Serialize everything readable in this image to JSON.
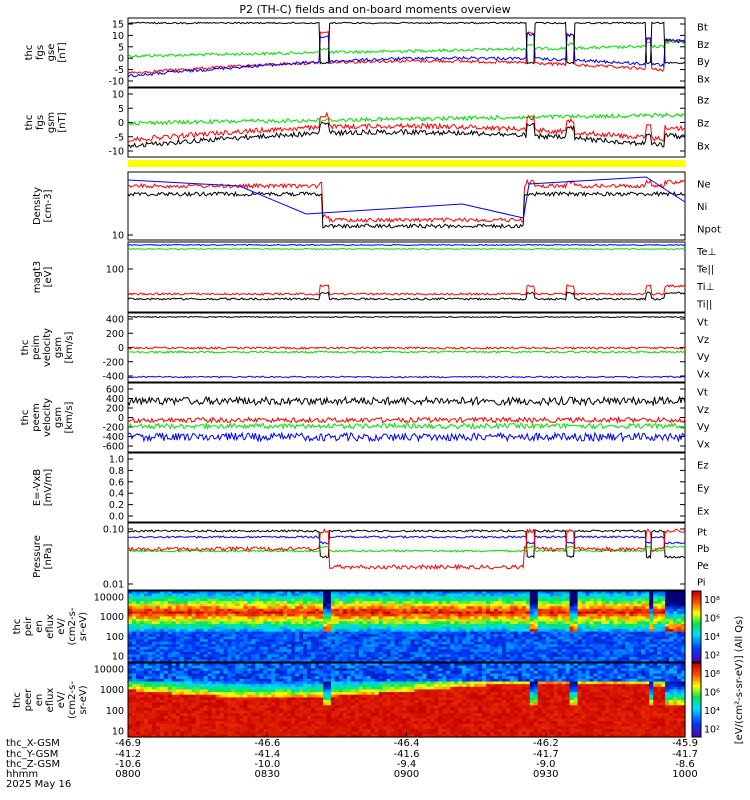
{
  "title": "P2 (TH-C) fields and on-board moments overview",
  "colors": {
    "black": "#000000",
    "red": "#ff0000",
    "green": "#00e000",
    "blue": "#0000ff",
    "yellow": "#ffff00"
  },
  "chart_data": [
    {
      "type": "line",
      "ylabel": [
        "thc",
        "fgs",
        "gse",
        "[nT]"
      ],
      "yticks": [
        "15",
        "10",
        "5",
        "0",
        "-5",
        "-10"
      ],
      "legend": [
        {
          "label": "Bt",
          "color": "black"
        },
        {
          "label": "Bz",
          "color": "red"
        },
        {
          "label": "By",
          "color": "green"
        },
        {
          "label": "Bx",
          "color": "blue"
        }
      ]
    },
    {
      "type": "line",
      "ylabel": [
        "thc",
        "fgs",
        "gsm",
        "[nT]"
      ],
      "yticks": [
        "10",
        "5",
        "0",
        "-5",
        "-10"
      ],
      "legend": [
        {
          "label": "Bz",
          "color": "green"
        },
        {
          "label": "Bz",
          "color": "red"
        },
        {
          "label": "Bx",
          "color": "black"
        }
      ]
    },
    {
      "type": "line",
      "ylabel": [
        "Density",
        "[cm-3]"
      ],
      "yticks": [
        "10"
      ],
      "legend": [
        {
          "label": "Ne",
          "color": "red"
        },
        {
          "label": "Ni",
          "color": "black"
        },
        {
          "label": "Npot",
          "color": "blue"
        }
      ]
    },
    {
      "type": "line",
      "ylabel": [
        "magt3",
        "[eV]"
      ],
      "yticks": [
        "100"
      ],
      "legend": [
        {
          "label": "Te⊥",
          "color": "red"
        },
        {
          "label": "Te||",
          "color": "black"
        },
        {
          "label": "Ti⊥",
          "color": "blue"
        },
        {
          "label": "Ti||",
          "color": "green"
        }
      ]
    },
    {
      "type": "line",
      "ylabel": [
        "thc",
        "peim",
        "velocity",
        "gsm",
        "[km/s]"
      ],
      "yticks": [
        "400",
        "200",
        "0",
        "-200",
        "-400"
      ],
      "legend": [
        {
          "label": "Vt",
          "color": "black"
        },
        {
          "label": "Vz",
          "color": "red"
        },
        {
          "label": "Vy",
          "color": "green"
        },
        {
          "label": "Vx",
          "color": "blue"
        }
      ]
    },
    {
      "type": "line",
      "ylabel": [
        "thc",
        "peem",
        "velocity",
        "gsm",
        "[km/s]"
      ],
      "yticks": [
        "600",
        "400",
        "200",
        "0",
        "-200",
        "-400",
        "-600"
      ],
      "legend": [
        {
          "label": "Vt",
          "color": "black"
        },
        {
          "label": "Vz",
          "color": "red"
        },
        {
          "label": "Vy",
          "color": "green"
        },
        {
          "label": "Vx",
          "color": "blue"
        }
      ]
    },
    {
      "type": "line",
      "ylabel": [
        "E=-VxB",
        "[mV/m]"
      ],
      "yticks": [
        "1.0",
        "0.8",
        "0.6",
        "0.4",
        "0.2",
        "0.0"
      ],
      "legend": [
        {
          "label": "Ez",
          "color": "red"
        },
        {
          "label": "Ey",
          "color": "green"
        },
        {
          "label": "Ex",
          "color": "blue"
        }
      ]
    },
    {
      "type": "line",
      "ylabel": [
        "Pressure",
        "[nPa]"
      ],
      "yticks": [
        "0.10",
        "0.01"
      ],
      "legend": [
        {
          "label": "Pt",
          "color": "black"
        },
        {
          "label": "Pb",
          "color": "red"
        },
        {
          "label": "Pe",
          "color": "green"
        },
        {
          "label": "Pi",
          "color": "blue"
        }
      ]
    },
    {
      "type": "heatmap",
      "ylabel": [
        "thc",
        "peir",
        "en",
        "eflux",
        "eV/",
        "(cm2-s-",
        "sr-eV)"
      ],
      "yticks": [
        "10000",
        "1000",
        "100",
        "10"
      ]
    },
    {
      "type": "heatmap",
      "ylabel": [
        "thc",
        "peer",
        "en",
        "eflux",
        "eV/",
        "(cm2-s-",
        "sr-eV)"
      ],
      "yticks": [
        "10000",
        "1000",
        "100",
        "10"
      ]
    }
  ],
  "colorbar": {
    "ticks": [
      "10⁸",
      "10⁶",
      "10⁴",
      "10²",
      "10⁸",
      "10⁶",
      "10⁴",
      "10²"
    ],
    "label": "[eV/(cm²-s-sr-eV)] (All Qs)"
  },
  "x_axis": {
    "row_labels": [
      "thc_X-GSM",
      "thc_Y-GSM",
      "thc_Z-GSM",
      "hhmm",
      "2025 May 16"
    ],
    "ticks": [
      [
        "-46.9",
        "-46.6",
        "-46.4",
        "-46.2",
        "-45.9"
      ],
      [
        "-41.2",
        "-41.4",
        "-41.6",
        "-41.7",
        "-41.7"
      ],
      [
        "-10.6",
        "-10.0",
        "-9.4",
        "-9.0",
        "-8.6"
      ],
      [
        "0800",
        "0830",
        "0900",
        "0930",
        "1000"
      ]
    ]
  }
}
